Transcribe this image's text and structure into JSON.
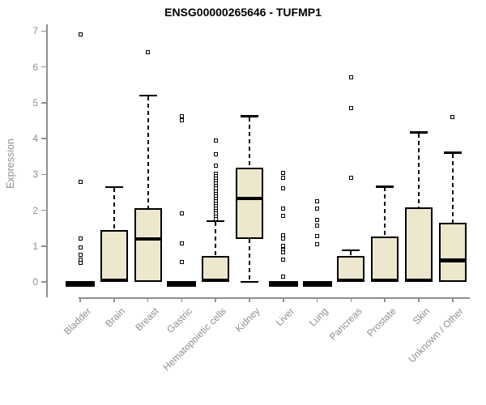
{
  "chart_data": {
    "type": "boxplot",
    "title": "ENSG00000265646 - TUFMP1",
    "ylabel": "Expression",
    "xlabel": "",
    "ylim": [
      0,
      7
    ],
    "yticks": [
      0,
      1,
      2,
      3,
      4,
      5,
      6,
      7
    ],
    "grid": false,
    "legend": "none",
    "categories": [
      "Bladder",
      "Brain",
      "Breast",
      "Gastric",
      "Hematopoietic cells",
      "Kidney",
      "Liver",
      "Lung",
      "Pancreas",
      "Prostate",
      "Skin",
      "Unknown / Other"
    ],
    "boxes": [
      {
        "category": "Bladder",
        "q1": 0,
        "median": 0,
        "q3": 0,
        "whisker_low": 0,
        "whisker_high": 0,
        "outliers": [
          6.9,
          2.8,
          1.2,
          0.95,
          0.75,
          0.63,
          0.52
        ]
      },
      {
        "category": "Brain",
        "q1": 0,
        "median": 0.05,
        "q3": 1.45,
        "whisker_low": 0,
        "whisker_high": 2.65,
        "outliers": []
      },
      {
        "category": "Breast",
        "q1": 0,
        "median": 1.2,
        "q3": 2.05,
        "whisker_low": 0,
        "whisker_high": 5.2,
        "outliers": [
          6.4
        ]
      },
      {
        "category": "Gastric",
        "q1": 0,
        "median": 0,
        "q3": 0,
        "whisker_low": 0,
        "whisker_high": 0,
        "outliers": [
          4.62,
          4.5,
          1.9,
          1.08,
          0.55
        ]
      },
      {
        "category": "Hematopoietic cells",
        "q1": 0,
        "median": 0.05,
        "q3": 0.72,
        "whisker_low": 0,
        "whisker_high": 1.7,
        "outliers": [
          3.95,
          3.55,
          3.25,
          3.02,
          2.95,
          2.88,
          2.81,
          2.74,
          2.67,
          2.6,
          2.53,
          2.46,
          2.39,
          2.32,
          2.25,
          2.18,
          2.11,
          2.04,
          1.97,
          1.9,
          1.83,
          1.76
        ]
      },
      {
        "category": "Kidney",
        "q1": 1.2,
        "median": 2.33,
        "q3": 3.18,
        "whisker_low": 0,
        "whisker_high": 4.62,
        "outliers": []
      },
      {
        "category": "Liver",
        "q1": 0,
        "median": 0,
        "q3": 0,
        "whisker_low": 0,
        "whisker_high": 0,
        "outliers": [
          3.05,
          2.9,
          2.6,
          2.05,
          1.85,
          1.3,
          1.22,
          1.0,
          0.9,
          0.82,
          0.63,
          0.15
        ]
      },
      {
        "category": "Lung",
        "q1": 0,
        "median": 0,
        "q3": 0,
        "whisker_low": 0,
        "whisker_high": 0,
        "outliers": [
          2.25,
          2.05,
          1.72,
          1.57,
          1.27,
          1.05
        ]
      },
      {
        "category": "Pancreas",
        "q1": 0,
        "median": 0.05,
        "q3": 0.73,
        "whisker_low": 0,
        "whisker_high": 0.88,
        "outliers": [
          5.7,
          4.85,
          2.9
        ]
      },
      {
        "category": "Prostate",
        "q1": 0,
        "median": 0.05,
        "q3": 1.27,
        "whisker_low": 0,
        "whisker_high": 2.66,
        "outliers": []
      },
      {
        "category": "Skin",
        "q1": 0,
        "median": 0.05,
        "q3": 2.08,
        "whisker_low": 0,
        "whisker_high": 4.17,
        "outliers": []
      },
      {
        "category": "Unknown / Other",
        "q1": 0,
        "median": 0.6,
        "q3": 1.65,
        "whisker_low": 0,
        "whisker_high": 3.6,
        "outliers": [
          4.6
        ]
      }
    ],
    "colors": {
      "box_fill": "#EDE7CE",
      "box_border": "#000000",
      "median": "#000000",
      "axis": "#8f8f8f",
      "tick_label": "#8f8f8f",
      "title": "#000000",
      "background": "#ffffff"
    }
  }
}
